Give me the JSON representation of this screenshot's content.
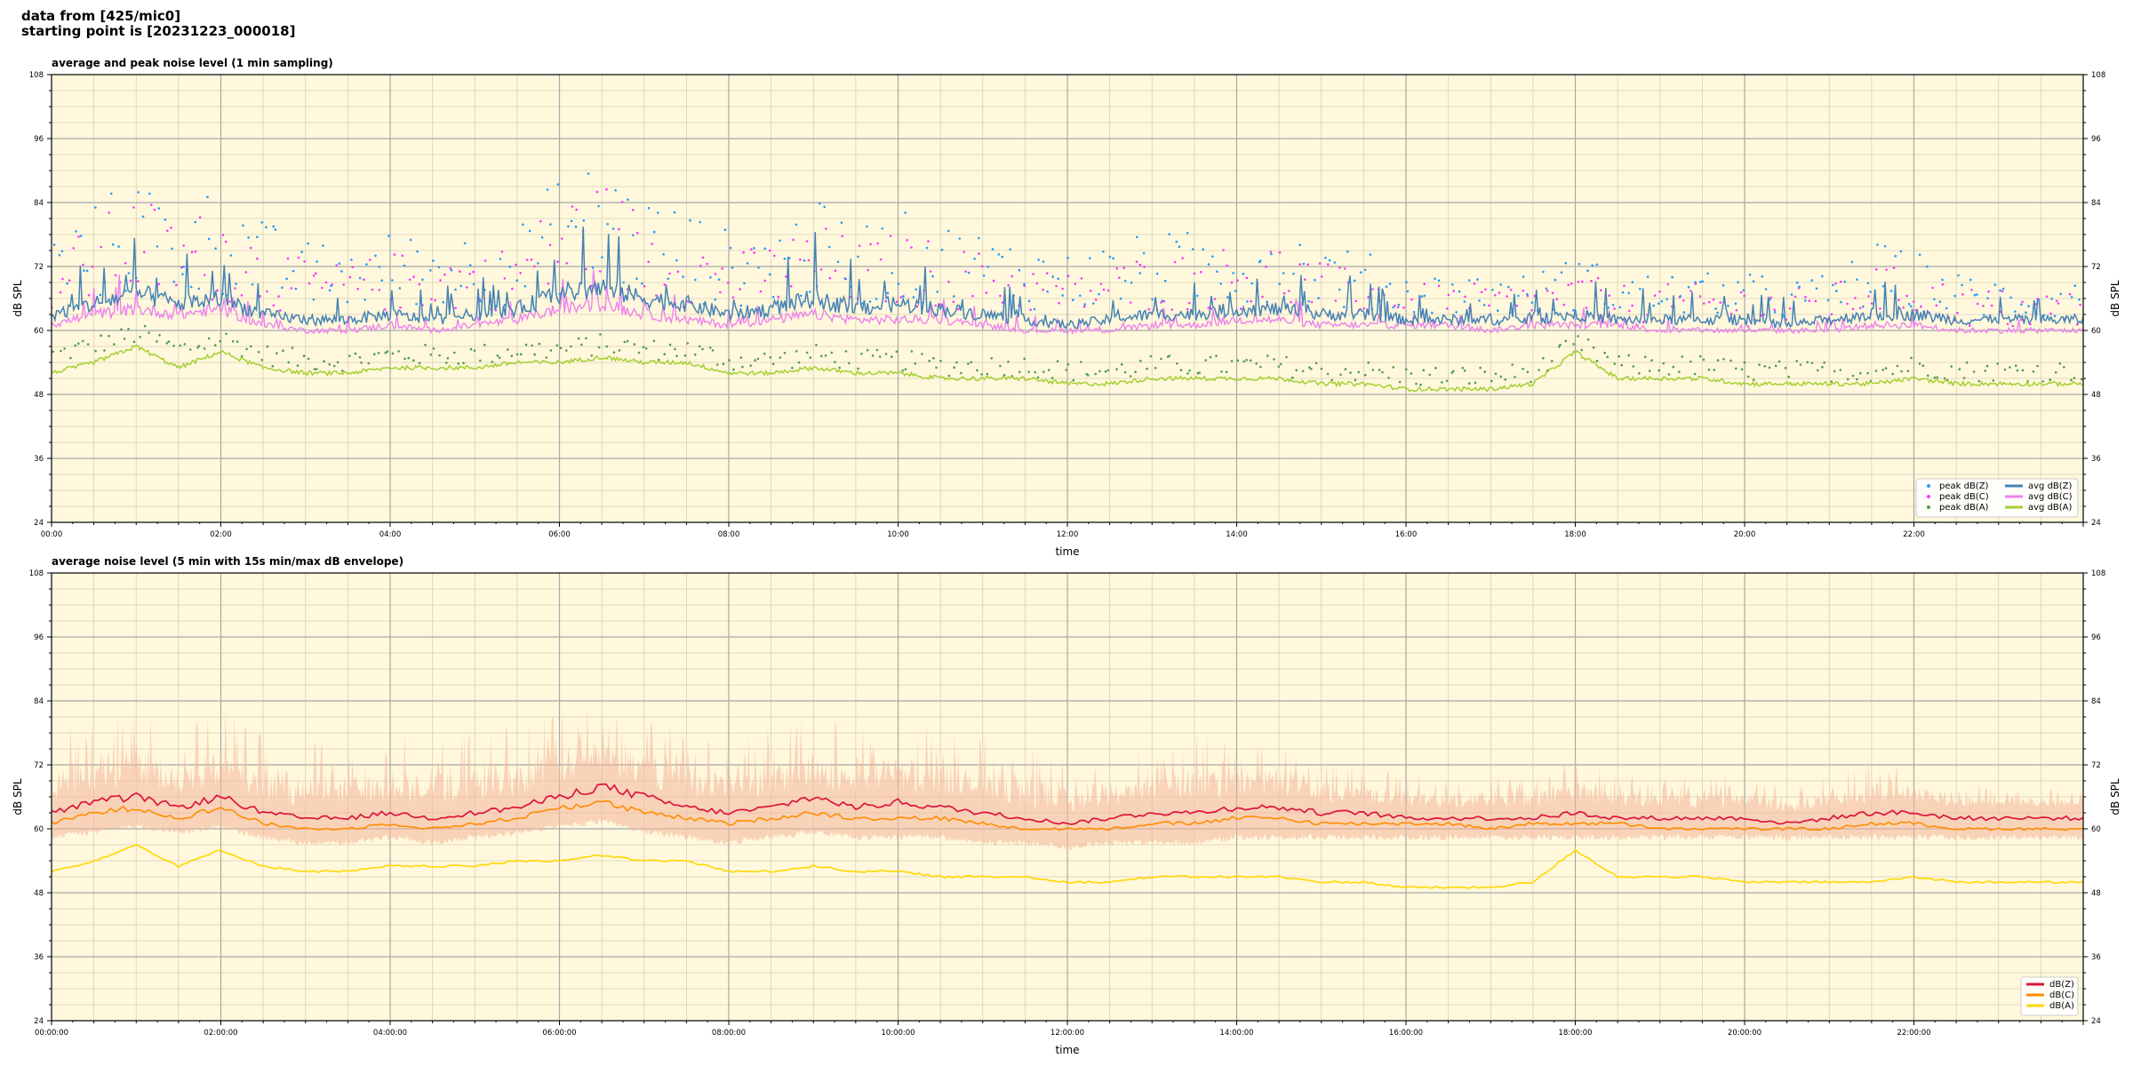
{
  "header": {
    "line1": "data from [425/mic0]",
    "line2": "starting point is [20231223_000018]"
  },
  "colors": {
    "background": "#fff8dc",
    "grid_major": "#a8a8a8",
    "grid_minor": "#d9d1b4",
    "peak_z": "#1f9bff",
    "peak_c": "#ff33ff",
    "peak_a": "#4f9a4f",
    "avg_z": "#4682b4",
    "avg_c": "#ee82ee",
    "avg_a": "#a6cf34",
    "z": "#dc143c",
    "c": "#ff8c00",
    "a": "#ffd700",
    "envelope": "#f4b59a"
  },
  "chart_data": [
    {
      "type": "line",
      "title": "average and peak noise level (1 min sampling)",
      "xlabel": "time",
      "ylabel": "dB SPL",
      "xlim_hours": [
        0,
        24
      ],
      "ylim": [
        24,
        108
      ],
      "yticks": [
        "24",
        "36",
        "48",
        "60",
        "72",
        "84",
        "96",
        "108"
      ],
      "xticks": [
        "00:00",
        "02:00",
        "04:00",
        "06:00",
        "08:00",
        "10:00",
        "12:00",
        "14:00",
        "16:00",
        "18:00",
        "20:00",
        "22:00"
      ],
      "grid": true,
      "legend": "bottom-right",
      "legend_entries": [
        "peak dB(Z)",
        "peak dB(C)",
        "peak dB(A)",
        "avg dB(Z)",
        "avg dB(C)",
        "avg dB(A)"
      ],
      "x": [
        0,
        0.5,
        1,
        1.5,
        2,
        2.5,
        3,
        3.5,
        4,
        4.5,
        5,
        5.5,
        6,
        6.5,
        7,
        7.5,
        8,
        8.5,
        9,
        9.5,
        10,
        10.5,
        11,
        11.5,
        12,
        12.5,
        13,
        13.5,
        14,
        14.5,
        15,
        15.5,
        16,
        16.5,
        17,
        17.5,
        18,
        18.5,
        19,
        19.5,
        20,
        20.5,
        21,
        21.5,
        22,
        22.5,
        23,
        23.5,
        24
      ],
      "series": [
        {
          "name": "avg dB(Z)",
          "style": "line",
          "values": [
            63,
            65,
            67,
            65,
            66,
            63,
            62,
            62,
            63,
            62,
            63,
            64,
            67,
            68,
            66,
            65,
            63,
            64,
            66,
            64,
            65,
            64,
            63,
            62,
            61,
            62,
            63,
            63,
            64,
            64,
            63,
            63,
            62,
            62,
            62,
            62,
            63,
            62,
            62,
            62,
            62,
            61,
            62,
            63,
            63,
            62,
            62,
            62,
            62
          ]
        },
        {
          "name": "avg dB(C)",
          "style": "line",
          "values": [
            61,
            63,
            64,
            63,
            64,
            61,
            60,
            60,
            61,
            60,
            61,
            62,
            64,
            65,
            63,
            62,
            61,
            62,
            63,
            62,
            62,
            62,
            61,
            60,
            60,
            60,
            61,
            61,
            62,
            62,
            61,
            61,
            61,
            61,
            60,
            61,
            61,
            61,
            60,
            60,
            60,
            60,
            60,
            61,
            61,
            60,
            60,
            60,
            60
          ]
        },
        {
          "name": "avg dB(A)",
          "style": "line",
          "values": [
            52,
            54,
            57,
            53,
            56,
            53,
            52,
            52,
            53,
            53,
            53,
            54,
            54,
            55,
            54,
            54,
            52,
            52,
            53,
            52,
            52,
            51,
            51,
            51,
            50,
            50,
            51,
            51,
            51,
            51,
            50,
            50,
            49,
            49,
            49,
            50,
            56,
            51,
            51,
            51,
            50,
            50,
            50,
            50,
            51,
            50,
            50,
            50,
            50
          ]
        },
        {
          "name": "peak dB(Z)",
          "style": "scatter",
          "values": [
            70,
            73,
            76,
            73,
            75,
            71,
            69,
            69,
            70,
            70,
            70,
            71,
            76,
            77,
            74,
            72,
            70,
            71,
            73,
            71,
            72,
            71,
            70,
            69,
            68,
            69,
            70,
            70,
            71,
            71,
            69,
            68,
            66,
            66,
            66,
            66,
            68,
            66,
            66,
            66,
            66,
            65,
            66,
            69,
            68,
            66,
            65,
            65,
            65
          ]
        },
        {
          "name": "peak dB(C)",
          "style": "scatter",
          "values": [
            68,
            71,
            74,
            71,
            73,
            69,
            67,
            67,
            68,
            68,
            68,
            69,
            74,
            75,
            72,
            70,
            68,
            69,
            71,
            69,
            70,
            69,
            68,
            67,
            66,
            67,
            68,
            68,
            69,
            69,
            67,
            66,
            64,
            64,
            64,
            64,
            66,
            64,
            64,
            64,
            64,
            63,
            64,
            67,
            66,
            64,
            63,
            63,
            63
          ]
        },
        {
          "name": "peak dB(A)",
          "style": "scatter",
          "values": [
            55,
            57,
            59,
            56,
            58,
            55,
            54,
            54,
            55,
            55,
            55,
            56,
            56,
            57,
            56,
            56,
            54,
            54,
            55,
            54,
            54,
            53,
            53,
            53,
            52,
            52,
            53,
            53,
            53,
            53,
            52,
            52,
            51,
            51,
            51,
            52,
            57,
            53,
            53,
            53,
            52,
            52,
            52,
            52,
            53,
            52,
            52,
            52,
            52
          ]
        }
      ]
    },
    {
      "type": "line",
      "title": "average noise level (5 min with 15s min/max dB envelope)",
      "xlabel": "time",
      "ylabel": "dB SPL",
      "xlim_hours": [
        0,
        24
      ],
      "ylim": [
        24,
        108
      ],
      "yticks": [
        "24",
        "36",
        "48",
        "60",
        "72",
        "84",
        "96",
        "108"
      ],
      "xticks": [
        "00:00:00",
        "02:00:00",
        "04:00:00",
        "06:00:00",
        "08:00:00",
        "10:00:00",
        "12:00:00",
        "14:00:00",
        "16:00:00",
        "18:00:00",
        "20:00:00",
        "22:00:00"
      ],
      "grid": true,
      "legend": "bottom-right",
      "legend_entries": [
        "dB(Z)",
        "dB(C)",
        "dB(A)"
      ],
      "x": [
        0,
        0.5,
        1,
        1.5,
        2,
        2.5,
        3,
        3.5,
        4,
        4.5,
        5,
        5.5,
        6,
        6.5,
        7,
        7.5,
        8,
        8.5,
        9,
        9.5,
        10,
        10.5,
        11,
        11.5,
        12,
        12.5,
        13,
        13.5,
        14,
        14.5,
        15,
        15.5,
        16,
        16.5,
        17,
        17.5,
        18,
        18.5,
        19,
        19.5,
        20,
        20.5,
        21,
        21.5,
        22,
        22.5,
        23,
        23.5,
        24
      ],
      "series": [
        {
          "name": "dB(Z)",
          "values": [
            63,
            65,
            66,
            64,
            66,
            63,
            62,
            62,
            63,
            62,
            63,
            64,
            66,
            68,
            66,
            64,
            63,
            64,
            66,
            64,
            65,
            64,
            63,
            62,
            61,
            62,
            63,
            63,
            64,
            64,
            63,
            63,
            62,
            62,
            62,
            62,
            63,
            62,
            62,
            62,
            62,
            61,
            62,
            63,
            63,
            62,
            62,
            62,
            62
          ]
        },
        {
          "name": "dB(C)",
          "values": [
            61,
            63,
            64,
            62,
            64,
            61,
            60,
            60,
            61,
            60,
            61,
            62,
            64,
            65,
            63,
            62,
            61,
            62,
            63,
            62,
            62,
            62,
            61,
            60,
            60,
            60,
            61,
            61,
            62,
            62,
            61,
            61,
            61,
            61,
            60,
            61,
            61,
            61,
            60,
            60,
            60,
            60,
            60,
            61,
            61,
            60,
            60,
            60,
            60
          ]
        },
        {
          "name": "dB(A)",
          "values": [
            52,
            54,
            57,
            53,
            56,
            53,
            52,
            52,
            53,
            53,
            53,
            54,
            54,
            55,
            54,
            54,
            52,
            52,
            53,
            52,
            52,
            51,
            51,
            51,
            50,
            50,
            51,
            51,
            51,
            51,
            50,
            50,
            49,
            49,
            49,
            50,
            56,
            51,
            51,
            51,
            50,
            50,
            50,
            50,
            51,
            50,
            50,
            50,
            50
          ]
        },
        {
          "name": "envelope max",
          "values": [
            78,
            82,
            84,
            80,
            84,
            78,
            77,
            77,
            79,
            78,
            79,
            81,
            84,
            85,
            82,
            80,
            77,
            79,
            82,
            80,
            82,
            80,
            78,
            76,
            73,
            75,
            77,
            78,
            78,
            78,
            74,
            72,
            70,
            70,
            70,
            70,
            74,
            70,
            70,
            70,
            70,
            68,
            70,
            74,
            72,
            69,
            68,
            68,
            68
          ]
        },
        {
          "name": "envelope min",
          "values": [
            59,
            60,
            61,
            60,
            61,
            59,
            58,
            58,
            59,
            58,
            59,
            60,
            61,
            62,
            60,
            59,
            58,
            59,
            60,
            59,
            59,
            59,
            58,
            58,
            57,
            58,
            58,
            58,
            59,
            59,
            59,
            59,
            59,
            59,
            59,
            59,
            59,
            59,
            59,
            59,
            59,
            59,
            59,
            59,
            59,
            59,
            59,
            59,
            59
          ]
        }
      ]
    }
  ]
}
